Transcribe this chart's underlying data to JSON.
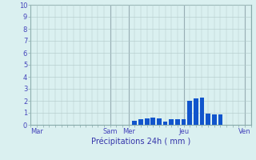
{
  "xlabel": "Précipitations 24h ( mm )",
  "ylim": [
    0,
    10
  ],
  "background_color": "#daf0f0",
  "bar_color": "#1155cc",
  "grid_color": "#b0c8c8",
  "tick_label_color": "#4444bb",
  "xlabel_color": "#3333aa",
  "bar_positions": [
    17,
    18,
    19,
    20,
    21,
    22,
    23,
    24,
    25,
    26,
    27,
    28,
    29,
    30,
    31
  ],
  "bar_heights": [
    0.35,
    0.5,
    0.55,
    0.6,
    0.55,
    0.3,
    0.5,
    0.5,
    0.45,
    2.0,
    2.2,
    2.3,
    0.95,
    0.9,
    0.85
  ],
  "xtick_positions": [
    1,
    13,
    16,
    25,
    35
  ],
  "xtick_labels": [
    "Mar",
    "Sam",
    "Mer",
    "Jeu",
    "Ven"
  ],
  "ytick_positions": [
    0,
    1,
    2,
    3,
    4,
    5,
    6,
    7,
    8,
    9,
    10
  ],
  "ytick_labels": [
    "0",
    "1",
    "2",
    "3",
    "4",
    "5",
    "6",
    "7",
    "8",
    "9",
    "10"
  ],
  "vline_positions": [
    13,
    16,
    25,
    35
  ],
  "vline_color": "#556677",
  "xlim": [
    0,
    36
  ]
}
